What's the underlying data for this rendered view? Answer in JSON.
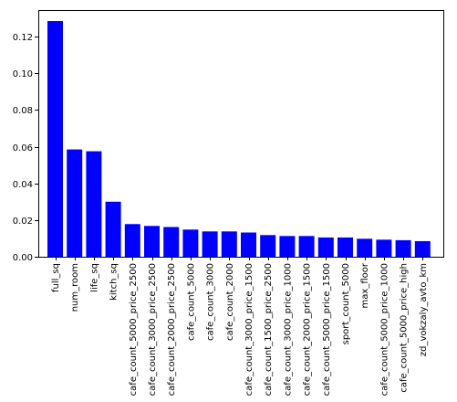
{
  "chart_data": {
    "type": "bar",
    "title": "",
    "xlabel": "",
    "ylabel": "",
    "ylim": [
      0,
      0.1345
    ],
    "yticks": [
      0.0,
      0.02,
      0.04,
      0.06,
      0.08,
      0.1,
      0.12
    ],
    "ytick_labels": [
      "0.00",
      "0.02",
      "0.04",
      "0.06",
      "0.08",
      "0.10",
      "0.12"
    ],
    "bar_color": "#0000ff",
    "grid": false,
    "legend": "none",
    "categories": [
      "full_sq",
      "num_room",
      "life_sq",
      "kitch_sq",
      "cafe_count_5000_price_2500",
      "cafe_count_3000_price_2500",
      "cafe_count_2000_price_2500",
      "cafe_count_5000",
      "cafe_count_3000",
      "cafe_count_2000",
      "cafe_count_3000_price_1500",
      "cafe_count_1500_price_2500",
      "cafe_count_3000_price_1000",
      "cafe_count_2000_price_1500",
      "cafe_count_5000_price_1500",
      "sport_count_5000",
      "max_floor",
      "cafe_count_5000_price_1000",
      "cafe_count_5000_price_high",
      "zd_vokzaly_avto_km"
    ],
    "values": [
      0.1285,
      0.0585,
      0.0575,
      0.03,
      0.0178,
      0.0168,
      0.0162,
      0.0148,
      0.0138,
      0.0138,
      0.0132,
      0.0118,
      0.0113,
      0.0113,
      0.0105,
      0.0105,
      0.0098,
      0.0093,
      0.009,
      0.0085
    ]
  }
}
